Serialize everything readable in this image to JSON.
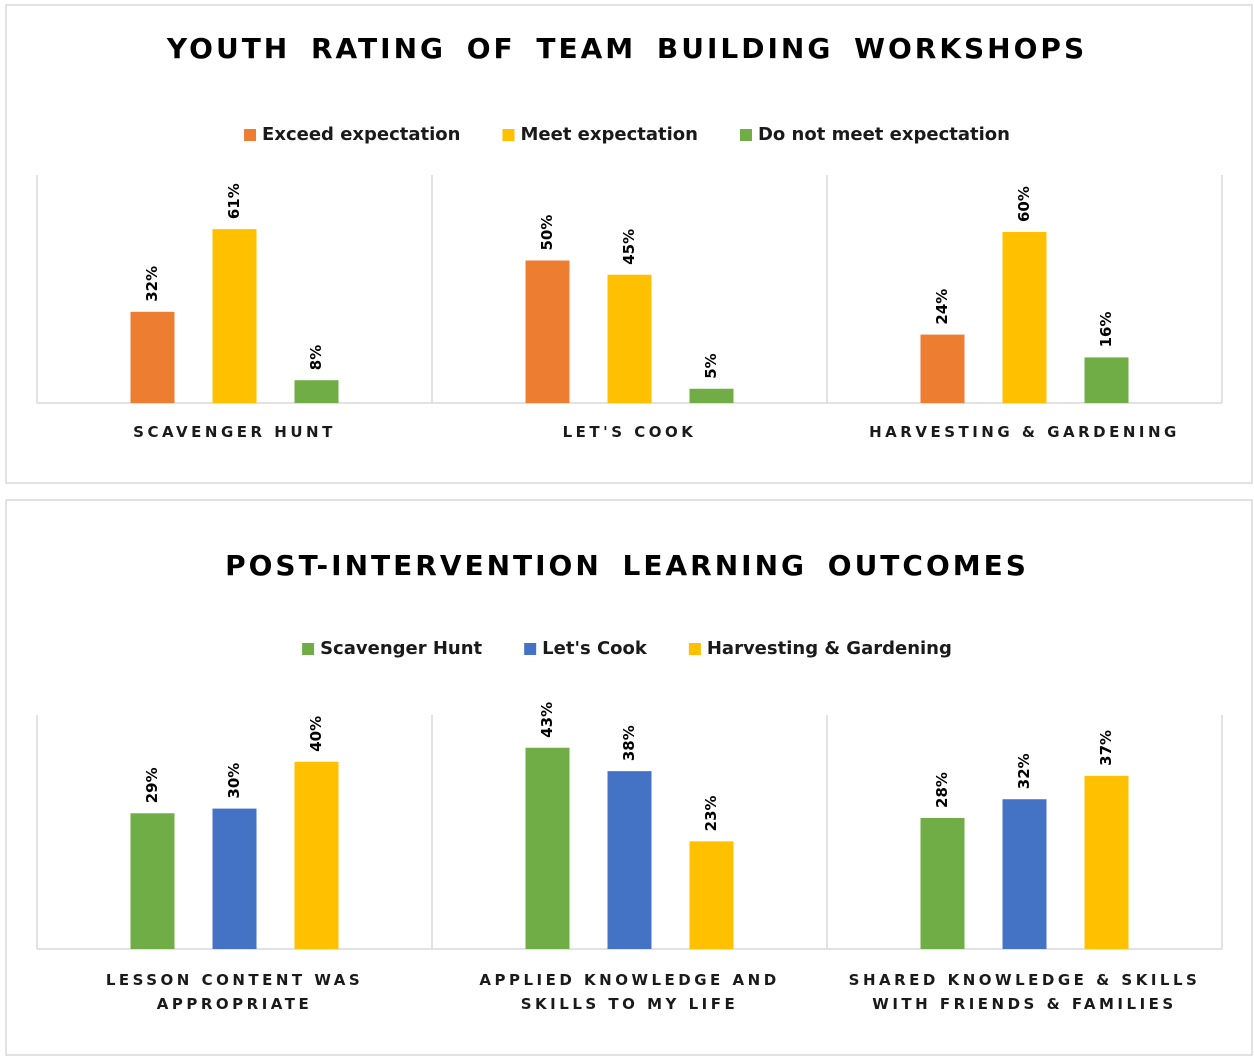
{
  "chart_data": [
    {
      "type": "bar",
      "title": "YOUTH RATING OF TEAM BUILDING WORKSHOPS",
      "categories": [
        "SCAVENGER HUNT",
        "LET'S COOK",
        "HARVESTING & GARDENING"
      ],
      "series": [
        {
          "name": "Exceed expectation",
          "color": "#ed7d31",
          "values": [
            32,
            50,
            24
          ],
          "value_labels": [
            "32%",
            "50%",
            "24%"
          ]
        },
        {
          "name": "Meet expectation",
          "color": "#ffc000",
          "values": [
            61,
            45,
            60
          ],
          "value_labels": [
            "61%",
            "45%",
            "60%"
          ]
        },
        {
          "name": "Do not meet expectation",
          "color": "#70ad47",
          "values": [
            8,
            5,
            16
          ],
          "value_labels": [
            "8%",
            "5%",
            "16%"
          ]
        }
      ],
      "ylim": [
        0,
        80
      ],
      "legend": "top"
    },
    {
      "type": "bar",
      "title": "POST-INTERVENTION LEARNING OUTCOMES",
      "categories": [
        "LESSON CONTENT WAS APPROPRIATE",
        "APPLIED KNOWLEDGE AND SKILLS TO MY LIFE",
        "SHARED KNOWLEDGE & SKILLS WITH FRIENDS & FAMILIES"
      ],
      "series": [
        {
          "name": "Scavenger Hunt",
          "color": "#70ad47",
          "values": [
            29,
            43,
            28
          ],
          "value_labels": [
            "29%",
            "43%",
            "28%"
          ]
        },
        {
          "name": "Let's Cook",
          "color": "#4472c4",
          "values": [
            30,
            38,
            32
          ],
          "value_labels": [
            "30%",
            "38%",
            "32%"
          ]
        },
        {
          "name": "Harvesting & Gardening",
          "color": "#ffc000",
          "values": [
            40,
            23,
            37
          ],
          "value_labels": [
            "40%",
            "23%",
            "37%"
          ]
        }
      ],
      "ylim": [
        0,
        50
      ],
      "legend": "top"
    }
  ]
}
